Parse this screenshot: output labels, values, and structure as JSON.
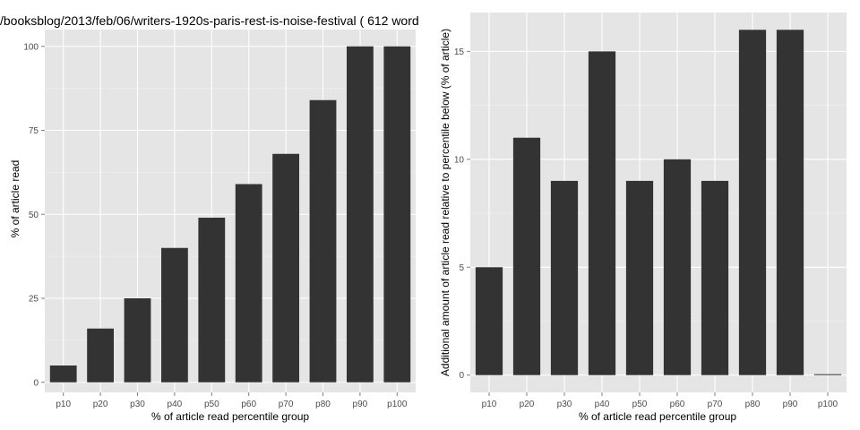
{
  "chart_data": [
    {
      "type": "bar",
      "title": "/booksblog/2013/feb/06/writers-1920s-paris-rest-is-noise-festival ( 612 word",
      "xlabel": "% of article read percentile group",
      "ylabel": "% of article read",
      "categories": [
        "p10",
        "p20",
        "p30",
        "p40",
        "p50",
        "p60",
        "p70",
        "p80",
        "p90",
        "p100"
      ],
      "values": [
        5,
        16,
        25,
        40,
        49,
        59,
        68,
        84,
        100,
        100
      ],
      "ylim": [
        -3,
        105
      ],
      "yticks": [
        0,
        25,
        50,
        75,
        100
      ],
      "ytick_labels": [
        "0",
        "25",
        "50",
        "75",
        "100"
      ],
      "grid": true,
      "bar_color": "#333333",
      "panel_color": "#e5e5e5"
    },
    {
      "type": "bar",
      "title": "",
      "xlabel": "% of article read percentile group",
      "ylabel": "Additional amount of article read relative to percentile below (% of article)",
      "categories": [
        "p10",
        "p20",
        "p30",
        "p40",
        "p50",
        "p60",
        "p70",
        "p80",
        "p90",
        "p100"
      ],
      "values": [
        5,
        11,
        9,
        15,
        9,
        10,
        9,
        16,
        16,
        0
      ],
      "ylim": [
        -0.8,
        16.8
      ],
      "yticks": [
        0,
        5,
        10,
        15
      ],
      "ytick_labels": [
        "0",
        "5",
        "10",
        "15"
      ],
      "grid": true,
      "bar_color": "#333333",
      "panel_color": "#e5e5e5"
    }
  ]
}
